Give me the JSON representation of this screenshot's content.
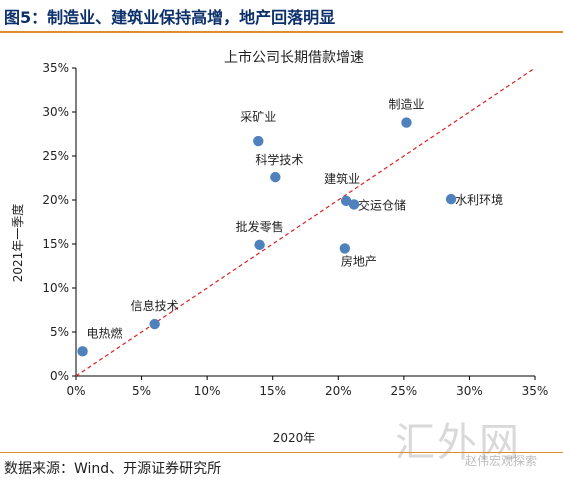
{
  "figure": {
    "title": "图5：制造业、建筑业保持高增，地产回落明显",
    "source": "数据来源：Wind、开源证券研究所",
    "watermark": "汇外网",
    "watermark_sub": "赵伟宏观探索"
  },
  "colors": {
    "title": "#0b2f6b",
    "rule": "#e08a2c",
    "point": "#4f81bd",
    "diagonal": "#e02020"
  },
  "chart_data": {
    "type": "scatter",
    "title": "上市公司长期借款增速",
    "xlabel": "2020年",
    "ylabel": "2021年一季度",
    "xlim": [
      0,
      35
    ],
    "ylim": [
      0,
      35
    ],
    "xticks": [
      "0%",
      "5%",
      "10%",
      "15%",
      "20%",
      "25%",
      "30%",
      "35%"
    ],
    "yticks": [
      "0%",
      "5%",
      "10%",
      "15%",
      "20%",
      "25%",
      "30%",
      "35%"
    ],
    "grid": false,
    "reference_line": "y = x",
    "points": [
      {
        "label": "电热燃",
        "x": 0.5,
        "y": 2.8
      },
      {
        "label": "信息技术",
        "x": 6.0,
        "y": 5.9
      },
      {
        "label": "批发零售",
        "x": 14.0,
        "y": 14.9
      },
      {
        "label": "采矿业",
        "x": 13.9,
        "y": 26.7
      },
      {
        "label": "科学技术",
        "x": 15.2,
        "y": 22.6
      },
      {
        "label": "建筑业",
        "x": 20.6,
        "y": 19.9
      },
      {
        "label": "交运仓储",
        "x": 21.2,
        "y": 19.5
      },
      {
        "label": "房地产",
        "x": 20.5,
        "y": 14.5
      },
      {
        "label": "制造业",
        "x": 25.2,
        "y": 28.8
      },
      {
        "label": "水利环境",
        "x": 28.6,
        "y": 20.1
      }
    ]
  }
}
